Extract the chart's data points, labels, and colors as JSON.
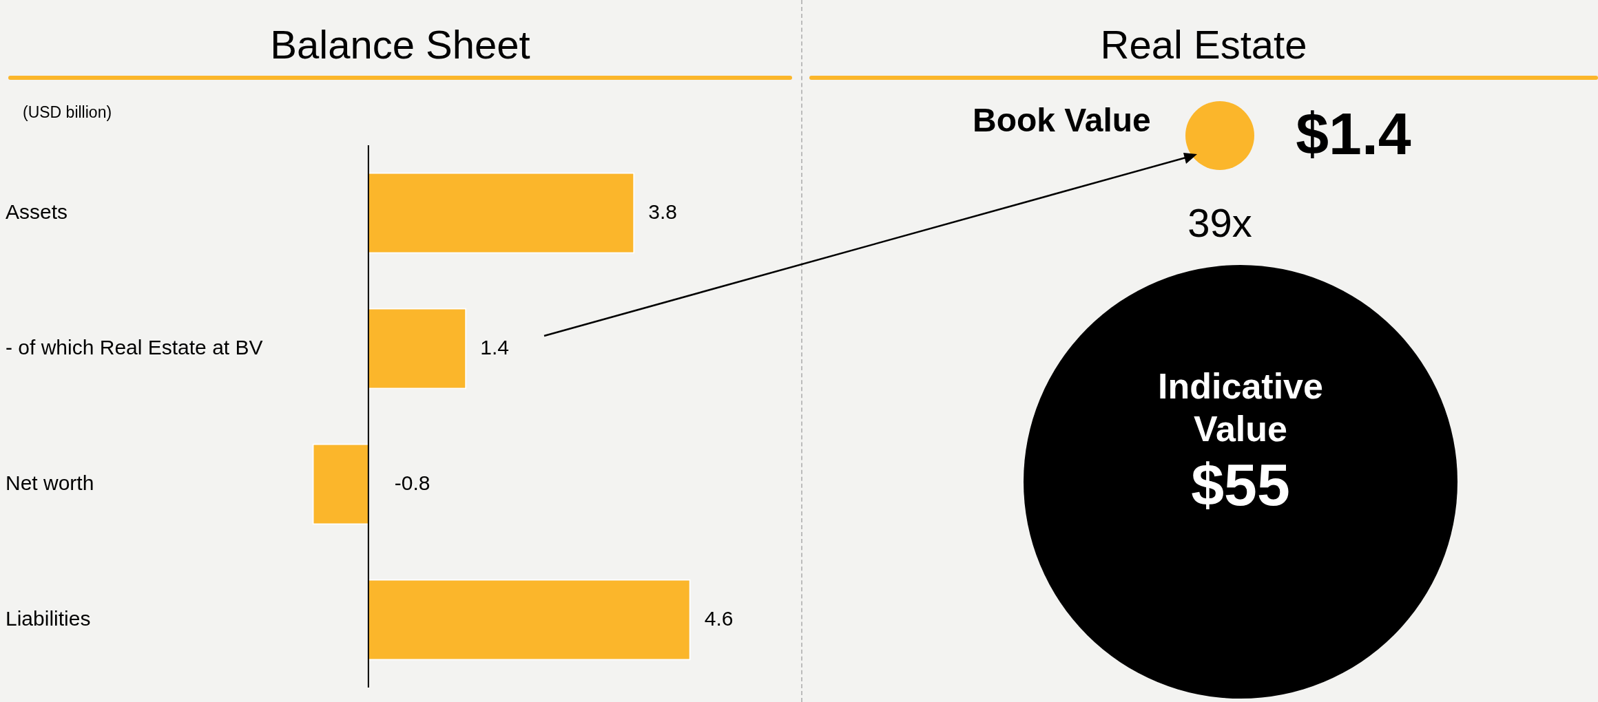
{
  "chart_data": [
    {
      "type": "bar",
      "orientation": "horizontal",
      "title": "Balance Sheet",
      "subtitle": "(USD billion)",
      "categories": [
        "Assets",
        "- of which Real Estate at BV",
        "Net worth",
        "Liabilities"
      ],
      "values": [
        3.8,
        1.4,
        -0.8,
        4.6
      ],
      "color": "#fbb62b",
      "data_labels": true
    },
    {
      "type": "other",
      "title": "Real Estate",
      "categories": [
        "Book Value",
        "Indicative Value"
      ],
      "values": [
        1.4,
        55
      ],
      "value_labels": [
        "$1.4",
        "$55"
      ],
      "colors": [
        "#fbb62b",
        "#000000"
      ],
      "annotations": [
        "39x"
      ]
    }
  ]
}
